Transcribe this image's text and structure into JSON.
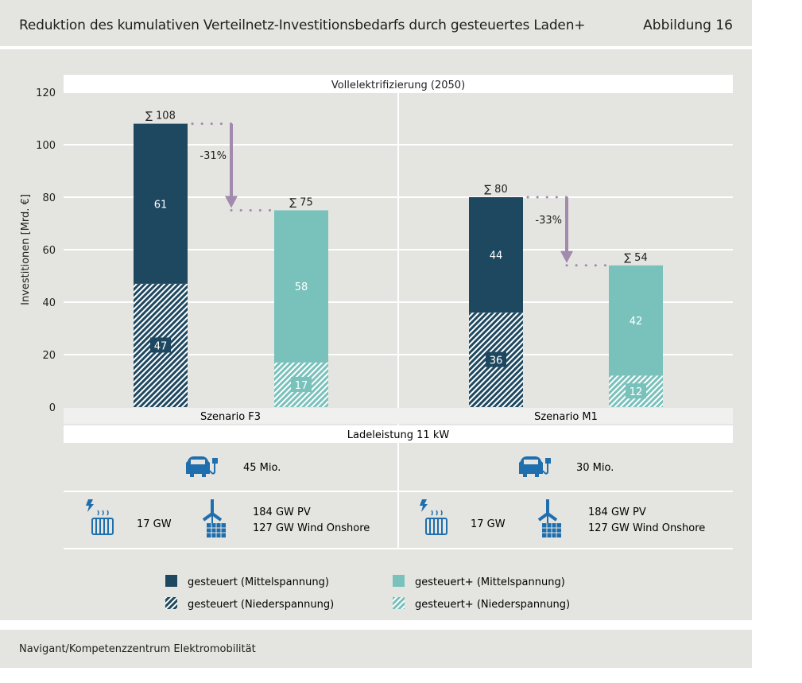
{
  "header": {
    "title": "Reduktion des kumulativen Verteilnetz-Investitionsbedarfs durch gesteuertes Laden+",
    "figure_label": "Abbildung 16"
  },
  "footer": {
    "source": "Navigant/Kompetenzzentrum Elektromobilität"
  },
  "colors": {
    "dark_blue": "#1e4860",
    "teal": "#79c1bb",
    "arrow": "#a28aad",
    "panel": "#e4e4e0",
    "grid": "#ffffff",
    "icon_blue": "#1f6fae"
  },
  "chart_data": {
    "type": "bar",
    "stacked": true,
    "title": "Vollelektrifizierung (2050)",
    "xlabel": "",
    "ylabel": "Investitionen [Mrd. €]",
    "ylim": [
      0,
      120
    ],
    "yticks": [
      0,
      20,
      40,
      60,
      80,
      100,
      120
    ],
    "grid": true,
    "groups": [
      {
        "name": "Szenario F3",
        "bars": [
          {
            "kind": "gesteuert",
            "total": 108,
            "total_label": "∑ 108",
            "mittelspannung": 61,
            "niederspannung": 47
          },
          {
            "kind": "gesteuert+",
            "total": 75,
            "total_label": "∑ 75",
            "mittelspannung": 58,
            "niederspannung": 17
          }
        ],
        "reduction_label": "-31%"
      },
      {
        "name": "Szenario M1",
        "bars": [
          {
            "kind": "gesteuert",
            "total": 80,
            "total_label": "∑ 80",
            "mittelspannung": 44,
            "niederspannung": 36
          },
          {
            "kind": "gesteuert+",
            "total": 54,
            "total_label": "∑ 54",
            "mittelspannung": 42,
            "niederspannung": 12
          }
        ],
        "reduction_label": "-33%"
      }
    ],
    "legend": [
      {
        "label": "gesteuert (Mittelspannung)",
        "style": "dark-solid"
      },
      {
        "label": "gesteuert+ (Mittelspannung)",
        "style": "teal-solid"
      },
      {
        "label": "gesteuert (Niederspannung)",
        "style": "dark-hatched"
      },
      {
        "label": "gesteuert+ (Niederspannung)",
        "style": "teal-hatched"
      }
    ],
    "legend_position": "bottom"
  },
  "info": {
    "charging_power": "Ladeleistung 11 kW",
    "scenarios": [
      {
        "ev_count": "45 Mio.",
        "heat_pumps": "17 GW",
        "pv": "184 GW PV",
        "wind": "127 GW Wind Onshore"
      },
      {
        "ev_count": "30 Mio.",
        "heat_pumps": "17 GW",
        "pv": "184 GW PV",
        "wind": "127 GW Wind Onshore"
      }
    ]
  }
}
